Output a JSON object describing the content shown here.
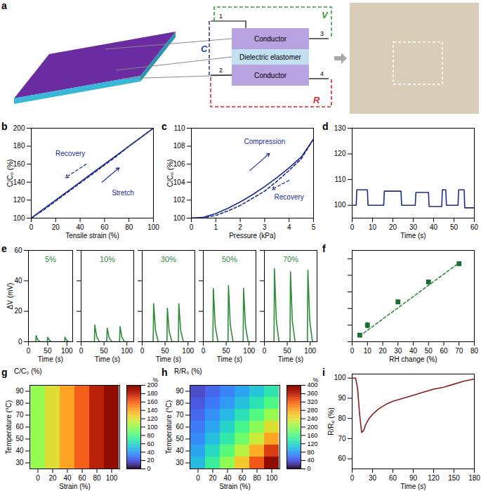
{
  "diagram": {
    "title": "a",
    "boxes": [
      "Conductor",
      "Dielectric elastomer",
      "Conductor"
    ],
    "terminals": [
      "1",
      "2",
      "3",
      "4"
    ],
    "loops": [
      {
        "label": "V",
        "color": "#2e9e3a"
      },
      {
        "label": "C",
        "color": "#2a3fb0"
      },
      {
        "label": "R",
        "color": "#d32f2f"
      }
    ]
  },
  "chart_data": [
    {
      "type": "line",
      "title": "b",
      "xlabel": "Tensile strain (%)",
      "ylabel": "C/C₀ (%)",
      "color": "#1c2b8f",
      "xlim": [
        0,
        100
      ],
      "xticks": [
        0,
        20,
        40,
        60,
        80,
        100
      ],
      "ylim": [
        100,
        200
      ],
      "yticks": [
        100,
        120,
        140,
        160,
        180,
        200
      ],
      "series": [
        {
          "color": "#1c2b8f",
          "line_style": "solid",
          "x": [
            0,
            10,
            20,
            30,
            40,
            50,
            60,
            70,
            80,
            90,
            100
          ],
          "values": [
            100,
            110,
            120,
            130,
            140,
            150,
            160,
            170,
            180,
            190,
            200
          ]
        },
        {
          "color": "#1c2b8f",
          "line_style": "dashed",
          "x": [
            0,
            10,
            20,
            30,
            40,
            50,
            60,
            70,
            80,
            90,
            100
          ],
          "values": [
            100,
            109,
            119,
            129,
            139,
            149,
            159,
            169,
            180,
            190,
            200
          ]
        }
      ],
      "annotations": [
        {
          "text": "Recovery",
          "x": 32,
          "y": 172,
          "arrow": [
            45,
            160,
            28,
            145
          ],
          "line_style": "dashed"
        },
        {
          "text": "Stretch",
          "x": 75,
          "y": 128,
          "arrow": [
            58,
            140,
            72,
            156
          ],
          "line_style": "solid"
        }
      ]
    },
    {
      "type": "line",
      "title": "c",
      "xlabel": "Pressure (kPa)",
      "ylabel": "C/C₀ (%)",
      "color": "#1c2b8f",
      "xlim": [
        0,
        5
      ],
      "xticks": [
        0,
        1,
        2,
        3,
        4,
        5
      ],
      "ylim": [
        100,
        110
      ],
      "yticks": [
        100,
        102,
        104,
        106,
        108,
        110
      ],
      "series": [
        {
          "color": "#1c2b8f",
          "line_style": "solid",
          "x": [
            0,
            0.5,
            1,
            1.5,
            2,
            2.5,
            3,
            3.5,
            4,
            4.5,
            5
          ],
          "values": [
            100,
            100.1,
            100.5,
            101.1,
            101.8,
            102.6,
            103.5,
            104.5,
            105.6,
            106.8,
            108.8
          ]
        },
        {
          "color": "#1c2b8f",
          "line_style": "dashed",
          "x": [
            0,
            0.5,
            1,
            1.5,
            2,
            2.5,
            3,
            3.5,
            4,
            4.5,
            5
          ],
          "values": [
            100,
            100.05,
            100.3,
            100.8,
            101.4,
            102.2,
            103,
            104.1,
            105.3,
            106.6,
            108.8
          ]
        }
      ],
      "annotations": [
        {
          "text": "Compression",
          "x": 3,
          "y": 108.5,
          "arrow": [
            2.4,
            105.3,
            3.2,
            107.2
          ],
          "line_style": "solid"
        },
        {
          "text": "Recovery",
          "x": 4,
          "y": 102.3,
          "arrow": [
            4,
            104.2,
            3.3,
            103.2
          ],
          "line_style": "dashed"
        }
      ]
    },
    {
      "type": "line",
      "title": "d",
      "xlabel": "Time (s)",
      "xlim": [
        0,
        60
      ],
      "xticks": [
        0,
        10,
        20,
        30,
        40,
        50,
        60
      ],
      "ylim": [
        95,
        130
      ],
      "yticks": [
        100,
        110,
        120,
        130
      ],
      "series": [
        {
          "color": "#1c2b8f",
          "line_style": "solid",
          "x": [
            0,
            2,
            2.3,
            7.5,
            7.8,
            15.5,
            15.8,
            24,
            24.3,
            31,
            31.3,
            37.5,
            37.8,
            44,
            44.3,
            46,
            46.3,
            52,
            52.3,
            55,
            55.3,
            60
          ],
          "values": [
            100,
            100,
            106,
            106,
            100,
            100,
            105.5,
            105.5,
            100,
            100,
            105,
            105,
            99.5,
            99.5,
            106,
            106,
            100,
            100,
            106,
            106,
            99,
            99
          ]
        }
      ]
    },
    {
      "type": "line_panels",
      "title": "e",
      "xlabel": "Time (s)",
      "ylabel": "ΔV (mV)",
      "color": "#2e8b3a",
      "xlim": [
        0,
        115
      ],
      "xticks": [
        0,
        50,
        100
      ],
      "ylim": [
        0,
        60
      ],
      "yticks": [
        0,
        20,
        40,
        60
      ],
      "series": [
        {
          "name": "5%",
          "x": [
            0,
            19,
            20,
            24,
            30,
            49,
            50,
            54,
            60,
            94,
            95,
            99,
            105,
            110
          ],
          "values": [
            0,
            0,
            4,
            1.2,
            0,
            0,
            3,
            0.9,
            0,
            0,
            3,
            0.9,
            0,
            0
          ]
        },
        {
          "name": "10%",
          "x": [
            0,
            29,
            30,
            34,
            40,
            56,
            57,
            61,
            67,
            84,
            85,
            89,
            95,
            110
          ],
          "values": [
            0,
            0,
            11,
            3.3,
            0,
            0,
            9,
            2.7,
            0,
            0,
            10,
            3,
            0,
            0
          ]
        },
        {
          "name": "30%",
          "x": [
            0,
            24,
            25,
            29,
            35,
            54,
            55,
            59,
            65,
            79,
            80,
            84,
            90,
            110
          ],
          "values": [
            0,
            0,
            25,
            7.5,
            0,
            0,
            22,
            6.6,
            0,
            0,
            25,
            7.5,
            0,
            0
          ]
        },
        {
          "name": "50%",
          "x": [
            0,
            21,
            22,
            26,
            32,
            54,
            55,
            59,
            65,
            87,
            88,
            92,
            98,
            110
          ],
          "values": [
            0,
            0,
            35,
            10.5,
            0,
            0,
            37,
            11.1,
            0,
            0,
            35,
            10.5,
            0,
            0
          ]
        },
        {
          "name": "70%",
          "x": [
            0,
            21,
            22,
            26,
            32,
            56,
            57,
            61,
            67,
            94,
            95,
            99,
            105,
            110
          ],
          "values": [
            0,
            0,
            48,
            14.4,
            0,
            0,
            46,
            13.8,
            0,
            0,
            47,
            14.1,
            0,
            0
          ]
        }
      ]
    },
    {
      "type": "scatter",
      "title": "f",
      "xlabel": "RH change (%)",
      "tick_labels": "x",
      "xlim": [
        0,
        80
      ],
      "xticks": [
        0,
        10,
        20,
        30,
        40,
        50,
        60,
        70,
        80
      ],
      "ylim": [
        0,
        55
      ],
      "yticks": [
        0,
        10,
        20,
        30,
        40,
        50
      ],
      "series": [
        {
          "type": "scatter",
          "color": "#1b6e2a",
          "marker": "square",
          "x": [
            5,
            10,
            30,
            50,
            70
          ],
          "values": [
            4,
            10,
            24,
            36,
            47
          ],
          "errors": [
            1,
            1.5,
            1,
            1,
            1
          ]
        },
        {
          "type": "line",
          "color": "#2e8b3a",
          "line_style": "dashed",
          "x": [
            5,
            70
          ],
          "values": [
            3.5,
            47.5
          ]
        }
      ]
    },
    {
      "type": "heatmap",
      "title": "g",
      "xlabel": "Strain (%)",
      "ylabel": "Temperature (°C)",
      "zlabel": "C/C₀ (%)",
      "x": [
        0,
        20,
        40,
        60,
        80,
        100
      ],
      "y": [
        30,
        40,
        50,
        60,
        70,
        80,
        90
      ],
      "cells": [
        [
          100,
          120,
          140,
          160,
          180,
          200
        ],
        [
          100,
          120,
          140,
          160,
          180,
          200
        ],
        [
          100,
          120,
          140,
          160,
          180,
          200
        ],
        [
          100,
          120,
          140,
          160,
          180,
          200
        ],
        [
          100,
          120,
          140,
          160,
          180,
          200
        ],
        [
          100,
          120,
          140,
          160,
          180,
          200
        ],
        [
          100,
          120,
          140,
          160,
          180,
          200
        ]
      ],
      "colorbar": {
        "label": "%",
        "range": [
          0,
          200
        ],
        "ticks": [
          0,
          20,
          40,
          60,
          80,
          100,
          120,
          140,
          160,
          180,
          200
        ]
      }
    },
    {
      "type": "heatmap",
      "title": "h",
      "xlabel": "Strain (%)",
      "ylabel": "Temperature (°C)",
      "zlabel": "R/R₀ (%)",
      "x": [
        0,
        20,
        40,
        60,
        80,
        100
      ],
      "y": [
        30,
        40,
        50,
        60,
        70,
        80,
        90
      ],
      "cells": [
        [
          100,
          144,
          196,
          256,
          324,
          400
        ],
        [
          85,
          122,
          167,
          218,
          275,
          340
        ],
        [
          70,
          101,
          137,
          179,
          227,
          280
        ],
        [
          60,
          86,
          118,
          154,
          194,
          240
        ],
        [
          50,
          72,
          98,
          128,
          162,
          200
        ],
        [
          40,
          58,
          78,
          102,
          130,
          160
        ],
        [
          33,
          48,
          65,
          84,
          107,
          132
        ]
      ],
      "colorbar": {
        "label": "%",
        "range": [
          0,
          400
        ],
        "ticks": [
          0,
          40,
          80,
          120,
          160,
          200,
          240,
          280,
          320,
          360,
          400
        ]
      }
    },
    {
      "type": "line",
      "title": "i",
      "xlabel": "Time (s)",
      "ylabel": "R/R₀ (%)",
      "xlim": [
        0,
        180
      ],
      "xticks": [
        0,
        30,
        60,
        90,
        120,
        150,
        180
      ],
      "ylim": [
        55,
        102
      ],
      "yticks": [
        60,
        70,
        80,
        90,
        100
      ],
      "series": [
        {
          "color": "#8b1c1c",
          "line_style": "solid",
          "x": [
            0,
            5,
            8,
            11,
            14,
            17,
            20,
            25,
            30,
            40,
            50,
            60,
            75,
            90,
            105,
            120,
            135,
            150,
            165,
            180
          ],
          "values": [
            100,
            100,
            95,
            82,
            73,
            74,
            77,
            80,
            82,
            85,
            87,
            88.5,
            90,
            91.5,
            93,
            94.5,
            95.5,
            97,
            98.5,
            99.5
          ]
        }
      ]
    }
  ]
}
